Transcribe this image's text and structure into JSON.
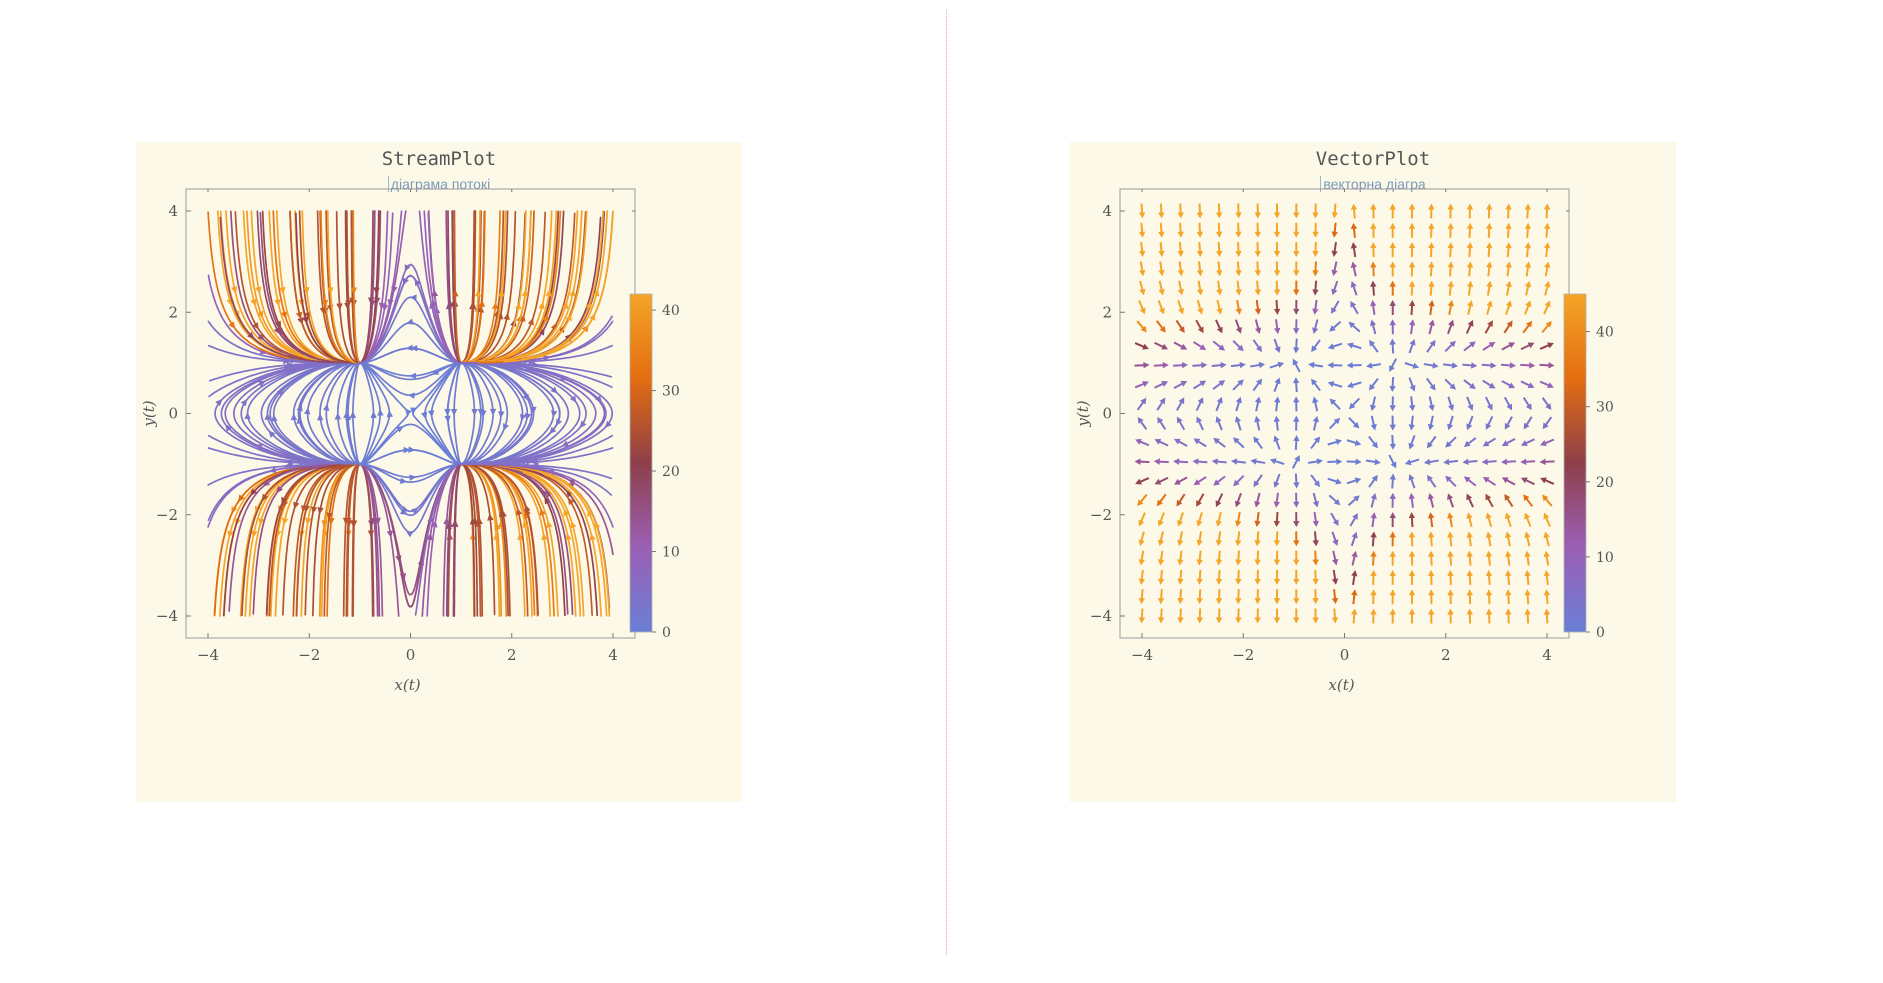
{
  "chart_data": [
    {
      "type": "stream",
      "title": "StreamPlot",
      "subtitle": "діаграма потокі",
      "xlabel": "x(t)",
      "ylabel": "y(t)",
      "xlim": [
        -4,
        4
      ],
      "ylim": [
        -4,
        4
      ],
      "xticks": [
        "−4",
        "−2",
        "0",
        "2",
        "4"
      ],
      "yticks": [
        "−4",
        "−2",
        "0",
        "2",
        "4"
      ],
      "colorbar": {
        "min": 0,
        "max": 42,
        "ticks": [
          "0",
          "10",
          "20",
          "30",
          "40"
        ]
      },
      "colors": [
        "#6a7fd6",
        "#9b5fb5",
        "#8e3f4a",
        "#e36d10",
        "#f5a528"
      ]
    },
    {
      "type": "vector",
      "title": "VectorPlot",
      "subtitle": "векторна діагра",
      "xlabel": "x(t)",
      "ylabel": "y(t)",
      "xlim": [
        -4,
        4
      ],
      "ylim": [
        -4,
        4
      ],
      "xticks": [
        "−4",
        "−2",
        "0",
        "2",
        "4"
      ],
      "yticks": [
        "−4",
        "−2",
        "0",
        "2",
        "4"
      ],
      "colorbar": {
        "min": 0,
        "max": 45,
        "ticks": [
          "0",
          "10",
          "20",
          "30",
          "40"
        ]
      },
      "colors": [
        "#6a7fd6",
        "#9b5fb5",
        "#8e3f4a",
        "#e36d10",
        "#f5a528"
      ]
    }
  ]
}
